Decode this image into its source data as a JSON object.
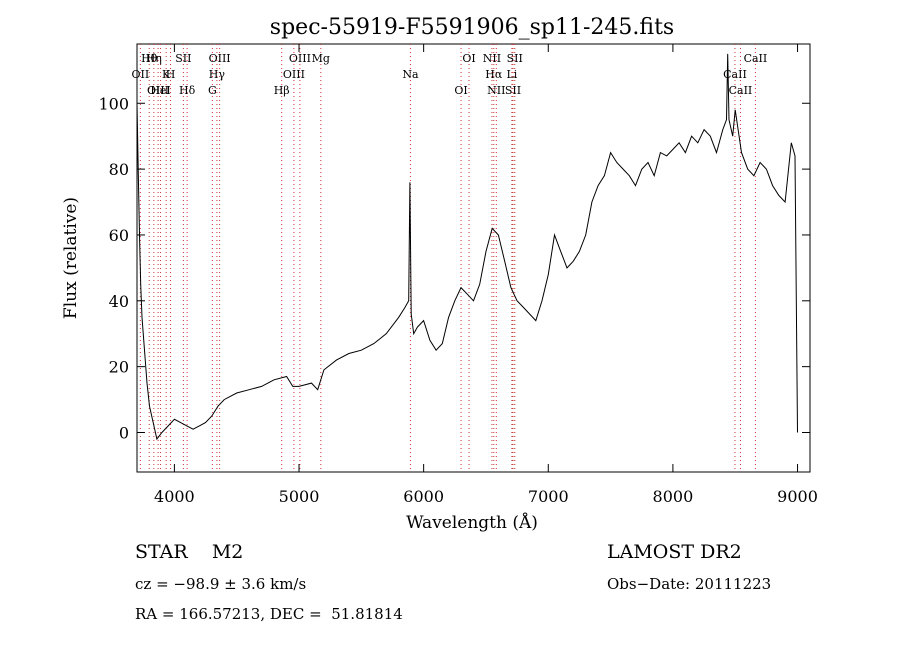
{
  "chart_data": {
    "type": "line",
    "title": "spec-55919-F5591906_sp11-245.fits",
    "xlabel": "Wavelength (Å)",
    "ylabel": "Flux (relative)",
    "xlim": [
      3700,
      9100
    ],
    "ylim": [
      -12,
      118
    ],
    "xticks": [
      4000,
      5000,
      6000,
      7000,
      8000,
      9000
    ],
    "yticks": [
      0,
      20,
      40,
      60,
      80,
      100
    ],
    "grid": false,
    "series": [
      {
        "x": [
          3700,
          3710,
          3720,
          3730,
          3740,
          3760,
          3780,
          3800,
          3830,
          3860,
          3900,
          3950,
          4000,
          4050,
          4100,
          4150,
          4200,
          4250,
          4300,
          4350,
          4400,
          4500,
          4600,
          4700,
          4800,
          4900,
          4950,
          5000,
          5100,
          5150,
          5200,
          5300,
          5400,
          5500,
          5600,
          5700,
          5800,
          5850,
          5880,
          5890,
          5900,
          5920,
          5950,
          6000,
          6050,
          6100,
          6150,
          6200,
          6250,
          6300,
          6350,
          6400,
          6450,
          6500,
          6550,
          6600,
          6650,
          6700,
          6750,
          6800,
          6850,
          6900,
          6950,
          7000,
          7050,
          7100,
          7150,
          7200,
          7250,
          7300,
          7350,
          7400,
          7450,
          7500,
          7550,
          7600,
          7650,
          7700,
          7750,
          7800,
          7850,
          7900,
          7950,
          8000,
          8050,
          8100,
          8150,
          8200,
          8250,
          8300,
          8350,
          8400,
          8430,
          8440,
          8450,
          8480,
          8500,
          8550,
          8600,
          8650,
          8700,
          8750,
          8800,
          8850,
          8900,
          8950,
          8980,
          9000
        ],
        "values": [
          100,
          80,
          60,
          45,
          35,
          25,
          15,
          8,
          3,
          -2,
          0,
          2,
          4,
          3,
          2,
          1,
          2,
          3,
          5,
          8,
          10,
          12,
          13,
          14,
          16,
          17,
          14,
          14,
          15,
          13,
          19,
          22,
          24,
          25,
          27,
          30,
          35,
          38,
          40,
          76,
          36,
          30,
          32,
          34,
          28,
          25,
          27,
          35,
          40,
          44,
          42,
          40,
          45,
          55,
          62,
          60,
          52,
          44,
          40,
          38,
          36,
          34,
          40,
          48,
          60,
          55,
          50,
          52,
          55,
          60,
          70,
          75,
          78,
          85,
          82,
          80,
          78,
          75,
          80,
          82,
          78,
          85,
          84,
          86,
          88,
          85,
          90,
          88,
          92,
          90,
          85,
          92,
          95,
          115,
          95,
          90,
          98,
          85,
          80,
          78,
          82,
          80,
          75,
          72,
          70,
          88,
          84,
          0
        ]
      }
    ],
    "lines": [
      {
        "label": "Hθ",
        "x": 3798
      },
      {
        "label": "K",
        "x": 3934
      },
      {
        "label": "Hδ",
        "x": 4102
      },
      {
        "label": "OIII",
        "x": 4363
      },
      {
        "label": "OII",
        "x": 3727
      },
      {
        "label": "HeI",
        "x": 3889
      },
      {
        "label": "SII",
        "x": 4072
      },
      {
        "label": "Hγ",
        "x": 4341
      },
      {
        "label": "OIII",
        "x": 3869
      },
      {
        "label": "Hη",
        "x": 3835
      },
      {
        "label": "H",
        "x": 3969
      },
      {
        "label": "G",
        "x": 4305
      },
      {
        "label": "OIII",
        "x": 5007
      },
      {
        "label": "OIII",
        "x": 4959
      },
      {
        "label": "Hβ",
        "x": 4861
      },
      {
        "label": "Mg",
        "x": 5175
      },
      {
        "label": "Na",
        "x": 5894
      },
      {
        "label": "OI",
        "x": 6300
      },
      {
        "label": "OI",
        "x": 6364
      },
      {
        "label": "Hα",
        "x": 6563
      },
      {
        "label": "SII",
        "x": 6717
      },
      {
        "label": "NII",
        "x": 6548
      },
      {
        "label": "Li",
        "x": 6708
      },
      {
        "label": "NII",
        "x": 6583
      },
      {
        "label": "SII",
        "x": 6731
      },
      {
        "label": "CaII",
        "x": 8498
      },
      {
        "label": "CaII",
        "x": 8542
      },
      {
        "label": "CaII",
        "x": 8662
      }
    ]
  },
  "info": {
    "object": "STAR    M2",
    "survey": "LAMOST DR2",
    "cz": "cz = −98.9 ± 3.6 km/s",
    "obsdate": "Obs−Date: 20111223",
    "radec": "RA = 166.57213, DEC =  51.81814"
  }
}
